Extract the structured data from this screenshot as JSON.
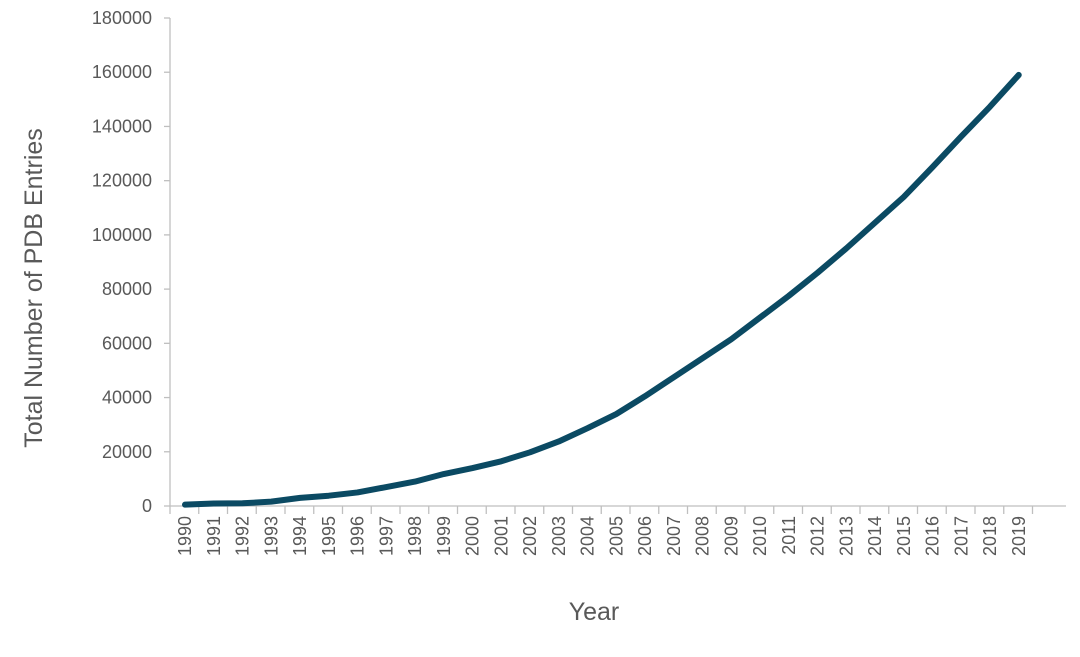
{
  "chart_data": {
    "type": "line",
    "title": "",
    "xlabel": "Year",
    "ylabel": "Total Number of PDB Entries",
    "categories": [
      "1990",
      "1991",
      "1992",
      "1993",
      "1994",
      "1995",
      "1996",
      "1997",
      "1998",
      "1999",
      "2000",
      "2001",
      "2002",
      "2003",
      "2004",
      "2005",
      "2006",
      "2007",
      "2008",
      "2009",
      "2010",
      "2011",
      "2012",
      "2013",
      "2014",
      "2015",
      "2016",
      "2017",
      "2018",
      "2019"
    ],
    "series": [
      {
        "color": "#0b4a63",
        "values": [
          500,
          900,
          1000,
          1600,
          3000,
          3800,
          5000,
          7000,
          9000,
          11800,
          14000,
          16500,
          19800,
          23800,
          28700,
          33900,
          40500,
          47500,
          54500,
          61500,
          69500,
          77500,
          86000,
          95000,
          104500,
          114000,
          125000,
          136300,
          147300,
          159000
        ]
      }
    ],
    "ylim": [
      0,
      180000
    ],
    "yticks": [
      0,
      20000,
      40000,
      60000,
      80000,
      100000,
      120000,
      140000,
      160000,
      180000
    ],
    "ytick_labels": [
      "0",
      "20000",
      "40000",
      "60000",
      "80000",
      "100000",
      "120000",
      "140000",
      "160000",
      "180000"
    ],
    "grid": false,
    "legend": "none"
  }
}
